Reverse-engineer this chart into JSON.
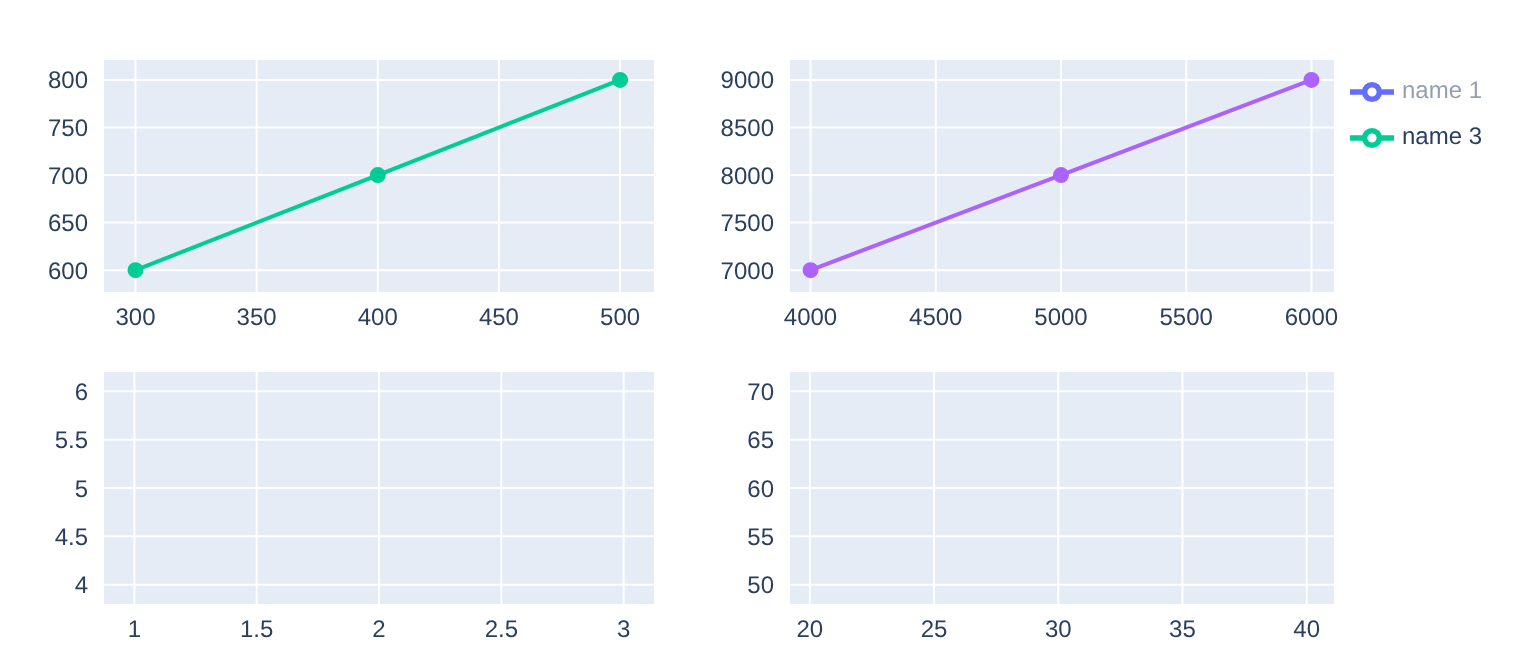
{
  "chart_data": [
    {
      "type": "line",
      "marker": "circle",
      "grid": true,
      "legend": "top right",
      "xlim": [
        287,
        514
      ],
      "ylim": [
        577,
        821
      ],
      "xticks": [
        300,
        350,
        400,
        450,
        500
      ],
      "yticks": [
        600,
        650,
        700,
        750,
        800
      ],
      "series": [
        {
          "name": "name 1",
          "color": "#636efa",
          "values": [
            null
          ]
        },
        {
          "name": "name 3",
          "color": "#00cc96",
          "x": [
            300,
            400,
            500
          ],
          "values": [
            600,
            700,
            800
          ]
        }
      ]
    },
    {
      "type": "line",
      "marker": "circle",
      "grid": true,
      "xlim": [
        3918,
        6090
      ],
      "ylim": [
        6770,
        9210
      ],
      "xticks": [
        4000,
        4500,
        5000,
        5500,
        6000
      ],
      "yticks": [
        7000,
        7500,
        8000,
        8500,
        9000
      ],
      "series": [
        {
          "color": "#ab63fa",
          "x": [
            4000,
            5000,
            6000
          ],
          "values": [
            7000,
            8000,
            9000
          ]
        }
      ]
    },
    {
      "type": "line",
      "grid": true,
      "xlim": [
        0.876,
        3.124
      ],
      "ylim": [
        3.8,
        6.2
      ],
      "xticks": [
        1,
        1.5,
        2,
        2.5,
        3
      ],
      "yticks": [
        4,
        4.5,
        5,
        5.5,
        6
      ]
    },
    {
      "type": "line",
      "grid": true,
      "xlim": [
        19.2,
        41.1
      ],
      "ylim": [
        48,
        72
      ],
      "xticks": [
        20,
        25,
        30,
        35,
        40
      ],
      "yticks": [
        50,
        55,
        60,
        65,
        70
      ]
    }
  ]
}
